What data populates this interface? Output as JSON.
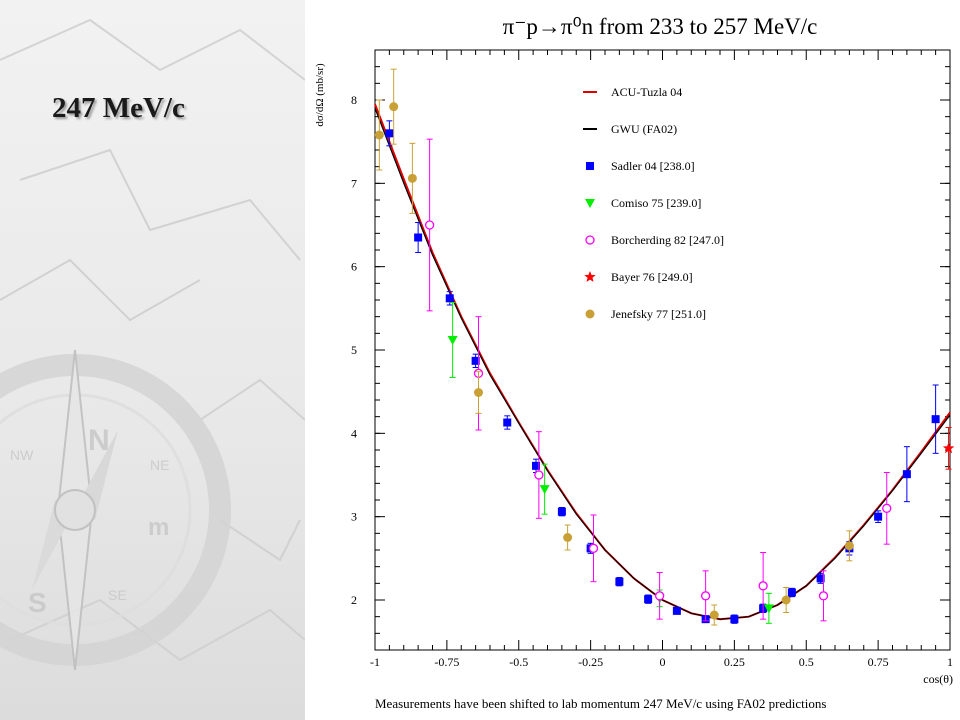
{
  "side_label": "247 MeV/c",
  "footnote": "Measurements have been shifted to lab momentum 247 MeV/c using FA02 predictions",
  "chart_data": {
    "type": "scatter",
    "title": "π⁻p→π⁰n from 233 to 257 MeV/c",
    "xlabel": "cos(θ)",
    "ylabel": "dσ/dΩ (mb/sr)",
    "xlim": [
      -1,
      1
    ],
    "ylim": [
      1.4,
      8.6
    ],
    "x_ticks": [
      -1,
      -0.75,
      -0.5,
      -0.25,
      0,
      0.25,
      0.5,
      0.75,
      1
    ],
    "x_tick_labels": [
      "-1",
      "-0.75",
      "-0.5",
      "-0.25",
      "0",
      "0.25",
      "0.5",
      "0.75",
      "1"
    ],
    "y_ticks": [
      2,
      3,
      4,
      5,
      6,
      7,
      8
    ],
    "y_tick_labels": [
      "2",
      "3",
      "4",
      "5",
      "6",
      "7",
      "8"
    ],
    "legend_position": "top-right",
    "curves": [
      {
        "name": "ACU-Tuzla 04",
        "color": "#e00000",
        "x": [
          -1,
          -0.9,
          -0.8,
          -0.7,
          -0.6,
          -0.5,
          -0.4,
          -0.3,
          -0.2,
          -0.1,
          0,
          0.1,
          0.2,
          0.3,
          0.4,
          0.5,
          0.6,
          0.7,
          0.8,
          0.9,
          1
        ],
        "y": [
          7.95,
          7.05,
          6.17,
          5.4,
          4.72,
          4.13,
          3.56,
          3.04,
          2.6,
          2.26,
          2.0,
          1.84,
          1.77,
          1.8,
          1.94,
          2.17,
          2.51,
          2.9,
          3.32,
          3.78,
          4.25
        ]
      },
      {
        "name": "GWU (FA02)",
        "color": "#000000",
        "x": [
          -1,
          -0.9,
          -0.8,
          -0.7,
          -0.6,
          -0.5,
          -0.4,
          -0.3,
          -0.2,
          -0.1,
          0,
          0.1,
          0.2,
          0.3,
          0.4,
          0.5,
          0.6,
          0.7,
          0.8,
          0.9,
          1
        ],
        "y": [
          7.9,
          7.0,
          6.14,
          5.38,
          4.7,
          4.12,
          3.55,
          3.03,
          2.6,
          2.26,
          2.0,
          1.84,
          1.77,
          1.8,
          1.94,
          2.17,
          2.5,
          2.89,
          3.31,
          3.76,
          4.22
        ]
      }
    ],
    "series": [
      {
        "name": "Sadler 04  [238.0]",
        "color": "#0000ff",
        "marker": "square",
        "points": [
          [
            -0.95,
            7.6,
            0.15
          ],
          [
            -0.85,
            6.35,
            0.18
          ],
          [
            -0.74,
            5.62,
            0.08
          ],
          [
            -0.65,
            4.87,
            0.08
          ],
          [
            -0.54,
            4.13,
            0.08
          ],
          [
            -0.44,
            3.61,
            0.08
          ],
          [
            -0.35,
            3.06,
            0.05
          ],
          [
            -0.25,
            2.62,
            0.06
          ],
          [
            -0.15,
            2.22,
            0.05
          ],
          [
            -0.05,
            2.01,
            0.05
          ],
          [
            0.05,
            1.87,
            0.04
          ],
          [
            0.15,
            1.77,
            0.04
          ],
          [
            0.25,
            1.77,
            0.05
          ],
          [
            0.35,
            1.9,
            0.05
          ],
          [
            0.45,
            2.09,
            0.05
          ],
          [
            0.55,
            2.26,
            0.06
          ],
          [
            0.65,
            2.62,
            0.08
          ],
          [
            0.75,
            3.0,
            0.07
          ],
          [
            0.85,
            3.51,
            0.33
          ],
          [
            0.95,
            4.17,
            0.41
          ]
        ]
      },
      {
        "name": "Comiso 75  [239.0]",
        "color": "#00ee00",
        "marker": "triangle-down",
        "points": [
          [
            -0.73,
            5.12,
            0.45
          ],
          [
            -0.41,
            3.33,
            0.3
          ],
          [
            -0.01,
            2.02,
            0.1
          ],
          [
            0.37,
            1.9,
            0.18
          ]
        ]
      },
      {
        "name": "Borcherding 82  [247.0]",
        "color": "#ff00ff",
        "marker": "open-circle",
        "points": [
          [
            -0.81,
            6.5,
            1.03
          ],
          [
            -0.64,
            4.72,
            0.68
          ],
          [
            -0.43,
            3.5,
            0.52
          ],
          [
            -0.24,
            2.62,
            0.4
          ],
          [
            -0.01,
            2.05,
            0.28
          ],
          [
            0.15,
            2.05,
            0.3
          ],
          [
            0.35,
            2.17,
            0.4
          ],
          [
            0.56,
            2.05,
            0.3
          ],
          [
            0.78,
            3.1,
            0.43
          ]
        ]
      },
      {
        "name": "Bayer 76  [249.0]",
        "color": "#ff0000",
        "marker": "star",
        "points": [
          [
            0.995,
            3.82,
            0.25
          ]
        ]
      },
      {
        "name": "Jenefsky 77  [251.0]",
        "color": "#c9a035",
        "marker": "filled-circle",
        "points": [
          [
            -0.985,
            7.58,
            0.42
          ],
          [
            -0.935,
            7.92,
            0.45
          ],
          [
            -0.87,
            7.06,
            0.42
          ],
          [
            -0.64,
            4.49,
            0.25
          ],
          [
            -0.33,
            2.75,
            0.15
          ],
          [
            0.18,
            1.82,
            0.12
          ],
          [
            0.43,
            2.0,
            0.15
          ],
          [
            0.65,
            2.65,
            0.18
          ]
        ]
      }
    ]
  }
}
